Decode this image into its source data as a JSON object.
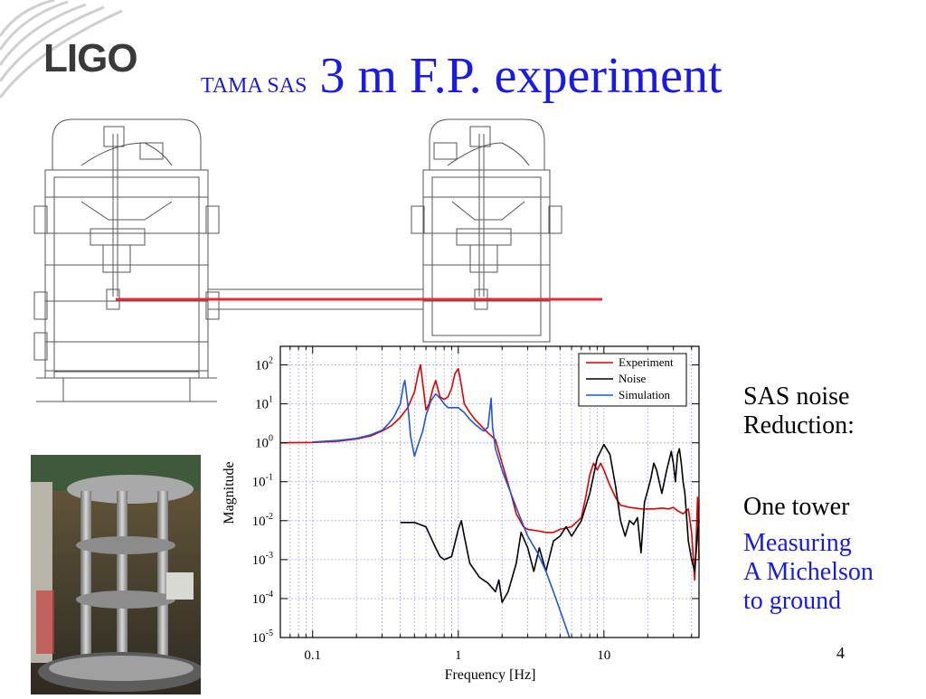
{
  "logo": {
    "text": "LIGO"
  },
  "title": {
    "small": "TAMA SAS",
    "big": "3 m F.P. experiment"
  },
  "side_text": {
    "heading_lines": [
      "SAS noise",
      "Reduction:"
    ],
    "tower_line": "One tower",
    "blue_lines": [
      "Measuring",
      "A Michelson",
      "to ground"
    ]
  },
  "page_number": "4",
  "colors": {
    "title_blue": "#1a1ae6",
    "beam_red": "#e8293a",
    "experiment": "#e00000",
    "noise": "#000000",
    "simulation": "#1f55d8"
  },
  "chart_data": {
    "type": "line",
    "xlabel": "Frequency [Hz]",
    "ylabel": "Magnitude",
    "xscale": "log",
    "yscale": "log",
    "xlim": [
      0.06,
      45
    ],
    "ylim": [
      1e-05,
      300
    ],
    "x_tick_labels": [
      "0.1",
      "1",
      "10"
    ],
    "y_tick_labels": [
      {
        "base": "10",
        "exp": "2"
      },
      {
        "base": "10",
        "exp": "1"
      },
      {
        "base": "10",
        "exp": "0"
      },
      {
        "base": "10",
        "exp": "-1"
      },
      {
        "base": "10",
        "exp": "-2"
      },
      {
        "base": "10",
        "exp": "-3"
      },
      {
        "base": "10",
        "exp": "-4"
      },
      {
        "base": "10",
        "exp": "-5"
      }
    ],
    "grid": true,
    "legend_position": "top-right",
    "series": [
      {
        "name": "Experiment",
        "color": "#e00000",
        "points": [
          [
            0.06,
            1.0
          ],
          [
            0.1,
            1.02
          ],
          [
            0.15,
            1.1
          ],
          [
            0.2,
            1.25
          ],
          [
            0.25,
            1.5
          ],
          [
            0.3,
            2.0
          ],
          [
            0.35,
            2.8
          ],
          [
            0.4,
            4.5
          ],
          [
            0.45,
            8
          ],
          [
            0.5,
            20
          ],
          [
            0.53,
            60
          ],
          [
            0.55,
            100
          ],
          [
            0.58,
            20
          ],
          [
            0.6,
            7
          ],
          [
            0.63,
            10
          ],
          [
            0.67,
            25
          ],
          [
            0.7,
            40
          ],
          [
            0.75,
            15
          ],
          [
            0.8,
            13
          ],
          [
            0.85,
            15
          ],
          [
            0.9,
            25
          ],
          [
            0.95,
            60
          ],
          [
            1.0,
            80
          ],
          [
            1.05,
            30
          ],
          [
            1.1,
            10
          ],
          [
            1.2,
            6
          ],
          [
            1.3,
            4
          ],
          [
            1.4,
            3
          ],
          [
            1.6,
            1.8
          ],
          [
            1.8,
            1.2
          ],
          [
            2.0,
            0.3
          ],
          [
            2.3,
            0.05
          ],
          [
            2.5,
            0.015
          ],
          [
            2.8,
            0.007
          ],
          [
            3.0,
            0.006
          ],
          [
            3.5,
            0.0055
          ],
          [
            4.0,
            0.005
          ],
          [
            4.5,
            0.005
          ],
          [
            5.0,
            0.006
          ],
          [
            6.0,
            0.007
          ],
          [
            7.0,
            0.012
          ],
          [
            7.5,
            0.04
          ],
          [
            8.0,
            0.15
          ],
          [
            8.5,
            0.3
          ],
          [
            9.0,
            0.2
          ],
          [
            9.5,
            0.3
          ],
          [
            10,
            0.2
          ],
          [
            11,
            0.08
          ],
          [
            12,
            0.04
          ],
          [
            13,
            0.025
          ],
          [
            15,
            0.022
          ],
          [
            18,
            0.02
          ],
          [
            20,
            0.02
          ],
          [
            22,
            0.02
          ],
          [
            25,
            0.021
          ],
          [
            28,
            0.02
          ],
          [
            30,
            0.022
          ],
          [
            32,
            0.018
          ],
          [
            35,
            0.015
          ],
          [
            38,
            0.02
          ],
          [
            40,
            0.005
          ],
          [
            42,
            0.0003
          ],
          [
            43,
            0.003
          ],
          [
            44,
            0.04
          ],
          [
            45,
            0.001
          ]
        ]
      },
      {
        "name": "Noise",
        "color": "#000000",
        "points": [
          [
            0.4,
            0.009
          ],
          [
            0.5,
            0.009
          ],
          [
            0.6,
            0.007
          ],
          [
            0.7,
            0.002
          ],
          [
            0.75,
            0.0012
          ],
          [
            0.8,
            0.001
          ],
          [
            0.9,
            0.0012
          ],
          [
            1.0,
            0.006
          ],
          [
            1.05,
            0.01
          ],
          [
            1.1,
            0.004
          ],
          [
            1.2,
            0.0008
          ],
          [
            1.4,
            0.00035
          ],
          [
            1.6,
            0.00025
          ],
          [
            1.8,
            0.00015
          ],
          [
            1.9,
            0.0003
          ],
          [
            2.0,
            8e-05
          ],
          [
            2.2,
            0.00015
          ],
          [
            2.5,
            0.0008
          ],
          [
            2.7,
            0.005
          ],
          [
            3.0,
            0.002
          ],
          [
            3.3,
            0.0005
          ],
          [
            3.6,
            0.002
          ],
          [
            4.0,
            0.0005
          ],
          [
            4.5,
            0.003
          ],
          [
            5.0,
            0.004
          ],
          [
            5.5,
            0.007
          ],
          [
            6.0,
            0.004
          ],
          [
            7.0,
            0.01
          ],
          [
            8.0,
            0.05
          ],
          [
            9.0,
            0.4
          ],
          [
            10,
            0.9
          ],
          [
            11,
            0.5
          ],
          [
            12,
            0.08
          ],
          [
            13,
            0.01
          ],
          [
            14,
            0.004
          ],
          [
            15,
            0.01
          ],
          [
            16,
            0.008
          ],
          [
            17,
            0.012
          ],
          [
            18,
            0.0015
          ],
          [
            19,
            0.03
          ],
          [
            20,
            0.06
          ],
          [
            21,
            0.12
          ],
          [
            22,
            0.3
          ],
          [
            23,
            0.2
          ],
          [
            24,
            0.1
          ],
          [
            25,
            0.05
          ],
          [
            27,
            0.2
          ],
          [
            29,
            0.6
          ],
          [
            30,
            0.3
          ],
          [
            31,
            0.1
          ],
          [
            32,
            0.5
          ],
          [
            33,
            0.7
          ],
          [
            34,
            0.3
          ],
          [
            35,
            0.1
          ],
          [
            36,
            0.05
          ],
          [
            38,
            0.003
          ],
          [
            40,
            0.001
          ],
          [
            42,
            0.0005
          ],
          [
            44,
            0.005
          ],
          [
            45,
            0.01
          ]
        ]
      },
      {
        "name": "Simulation",
        "color": "#1f55d8",
        "points": [
          [
            0.1,
            1.05
          ],
          [
            0.15,
            1.15
          ],
          [
            0.2,
            1.3
          ],
          [
            0.25,
            1.6
          ],
          [
            0.3,
            2.1
          ],
          [
            0.33,
            3.0
          ],
          [
            0.36,
            4.5
          ],
          [
            0.4,
            10
          ],
          [
            0.42,
            30
          ],
          [
            0.43,
            40
          ],
          [
            0.45,
            10
          ],
          [
            0.47,
            1.5
          ],
          [
            0.5,
            0.45
          ],
          [
            0.53,
            0.9
          ],
          [
            0.57,
            2
          ],
          [
            0.6,
            5
          ],
          [
            0.65,
            12
          ],
          [
            0.7,
            18
          ],
          [
            0.75,
            14
          ],
          [
            0.8,
            10
          ],
          [
            0.85,
            8
          ],
          [
            0.9,
            8
          ],
          [
            1.0,
            8
          ],
          [
            1.1,
            6
          ],
          [
            1.2,
            4
          ],
          [
            1.3,
            3
          ],
          [
            1.4,
            2.4
          ],
          [
            1.5,
            2
          ],
          [
            1.6,
            2.5
          ],
          [
            1.68,
            14
          ],
          [
            1.72,
            2.5
          ],
          [
            1.8,
            0.7
          ],
          [
            2.0,
            0.2
          ],
          [
            2.3,
            0.05
          ],
          [
            2.6,
            0.015
          ],
          [
            3.0,
            0.004
          ],
          [
            3.5,
            0.0015
          ],
          [
            4.0,
            0.0005
          ],
          [
            4.5,
            0.00015
          ],
          [
            5.0,
            5e-05
          ],
          [
            5.5,
            1.8e-05
          ],
          [
            5.8,
            1e-05
          ]
        ]
      }
    ]
  }
}
